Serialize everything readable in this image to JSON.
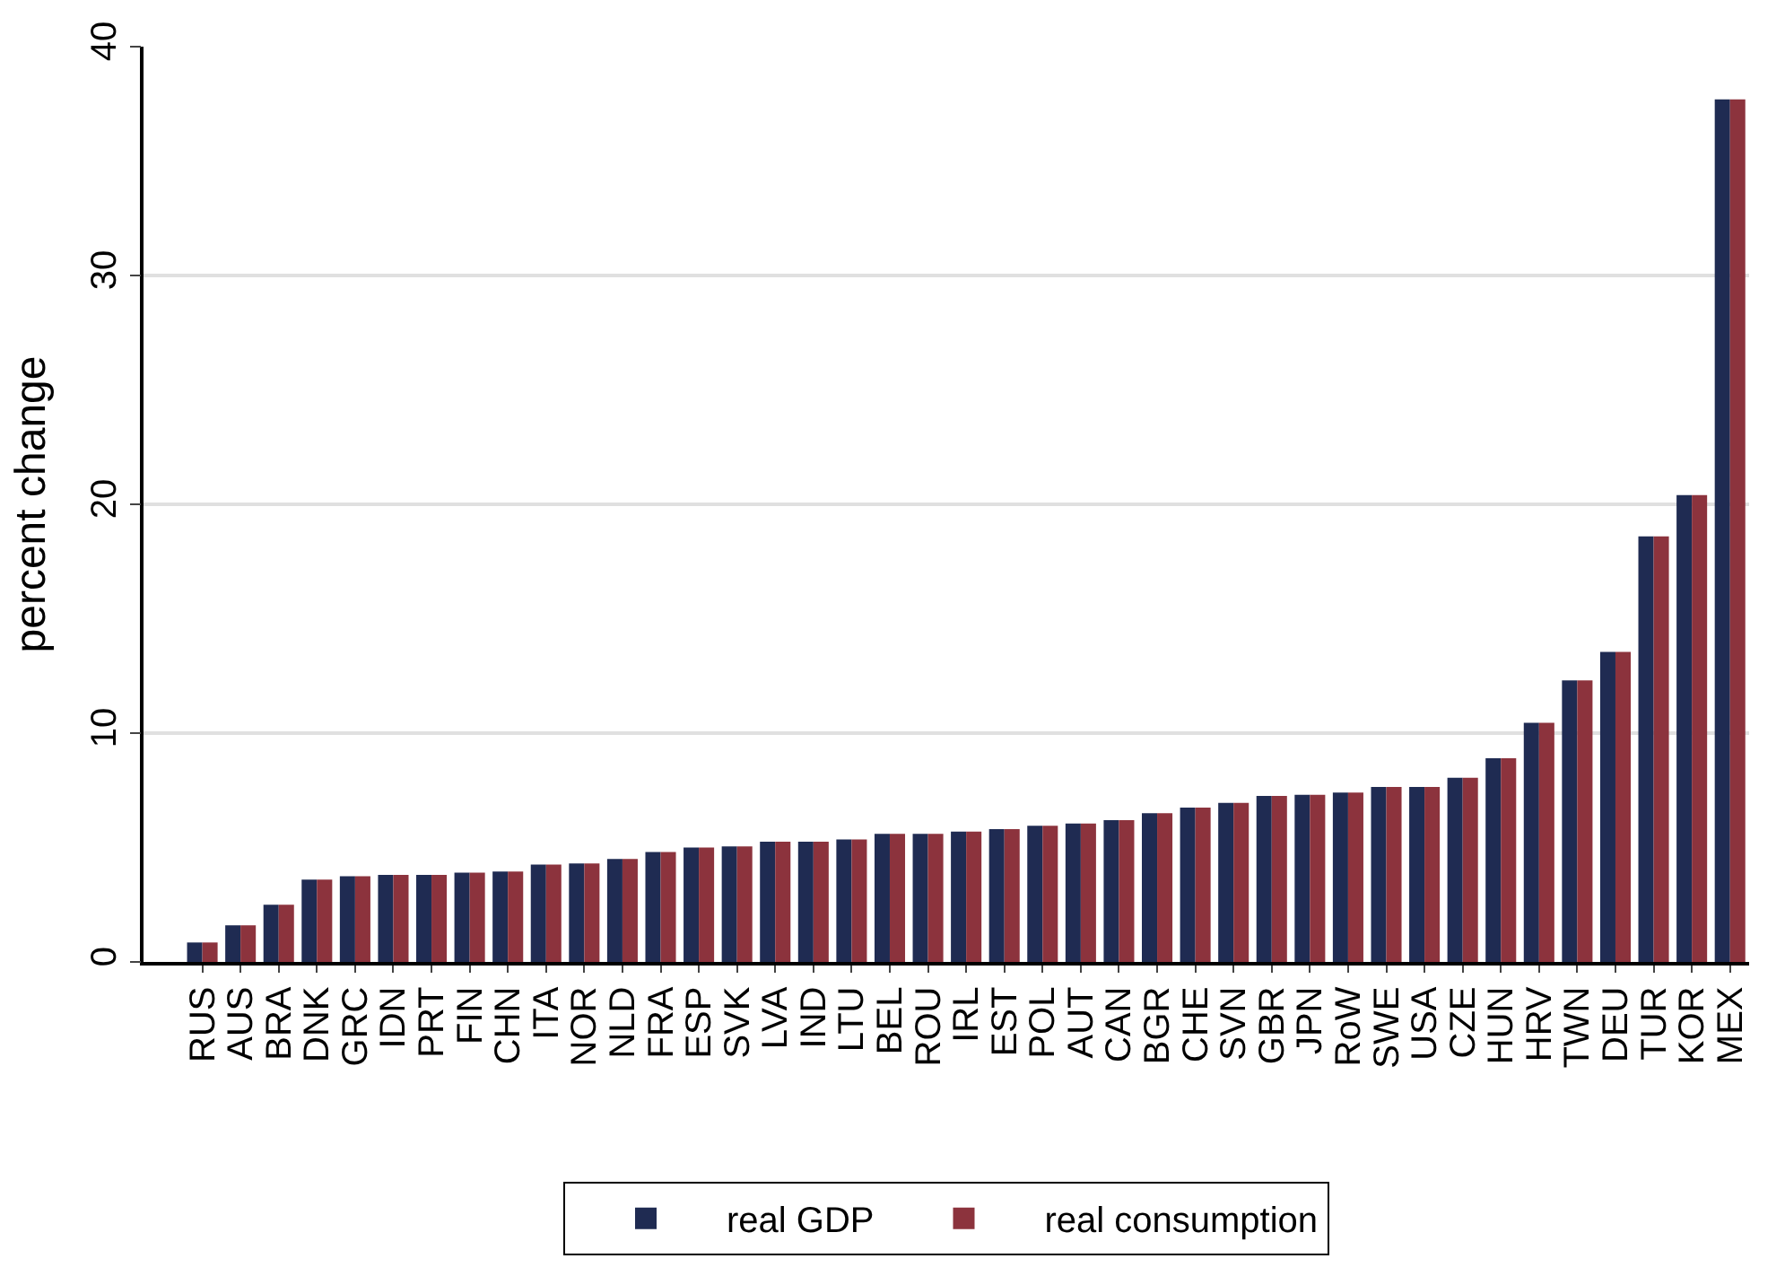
{
  "chart_data": {
    "type": "bar",
    "ylabel": "percent change",
    "categories": [
      "RUS",
      "AUS",
      "BRA",
      "DNK",
      "GRC",
      "IDN",
      "PRT",
      "FIN",
      "CHN",
      "ITA",
      "NOR",
      "NLD",
      "FRA",
      "ESP",
      "SVK",
      "LVA",
      "IND",
      "LTU",
      "BEL",
      "ROU",
      "IRL",
      "EST",
      "POL",
      "AUT",
      "CAN",
      "BGR",
      "CHE",
      "SVN",
      "GBR",
      "JPN",
      "RoW",
      "SWE",
      "USA",
      "CZE",
      "HUN",
      "HRV",
      "TWN",
      "DEU",
      "TUR",
      "KOR",
      "MEX"
    ],
    "series": [
      {
        "name": "real GDP",
        "color": "#1f2b52",
        "values": [
          0.85,
          1.6,
          2.5,
          3.6,
          3.75,
          3.8,
          3.8,
          3.9,
          3.95,
          4.25,
          4.3,
          4.5,
          4.8,
          5.0,
          5.05,
          5.25,
          5.25,
          5.35,
          5.6,
          5.6,
          5.7,
          5.8,
          5.95,
          6.05,
          6.2,
          6.5,
          6.75,
          6.95,
          7.25,
          7.3,
          7.4,
          7.65,
          7.65,
          8.05,
          8.9,
          10.45,
          12.3,
          13.55,
          18.6,
          20.4,
          37.7
        ]
      },
      {
        "name": "real consumption",
        "color": "#8c333d",
        "values": [
          0.85,
          1.6,
          2.5,
          3.6,
          3.75,
          3.8,
          3.8,
          3.9,
          3.95,
          4.25,
          4.3,
          4.5,
          4.8,
          5.0,
          5.05,
          5.25,
          5.25,
          5.35,
          5.6,
          5.6,
          5.7,
          5.8,
          5.95,
          6.05,
          6.2,
          6.5,
          6.75,
          6.95,
          7.25,
          7.3,
          7.4,
          7.65,
          7.65,
          8.05,
          8.9,
          10.45,
          12.3,
          13.55,
          18.6,
          20.4,
          37.7
        ]
      }
    ],
    "ylim": [
      0,
      40
    ],
    "yticks": [
      0,
      10,
      20,
      30,
      40
    ],
    "grid": "y",
    "legend": "bottom"
  }
}
